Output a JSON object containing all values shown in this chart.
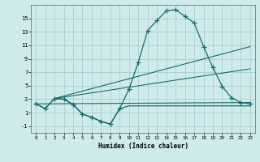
{
  "xlabel": "Humidex (Indice chaleur)",
  "background_color": "#ceeaea",
  "grid_color": "#aacfcf",
  "line_color": "#1a6b6b",
  "xlim": [
    -0.5,
    23.5
  ],
  "ylim": [
    -2,
    17
  ],
  "xticks": [
    0,
    1,
    2,
    3,
    4,
    5,
    6,
    7,
    8,
    9,
    10,
    11,
    12,
    13,
    14,
    15,
    16,
    17,
    18,
    19,
    20,
    21,
    22,
    23
  ],
  "yticks": [
    -1,
    1,
    3,
    5,
    7,
    9,
    11,
    13,
    15
  ],
  "curve_x": [
    0,
    1,
    2,
    3,
    4,
    5,
    6,
    7,
    8,
    9,
    10,
    11,
    12,
    13,
    14,
    15,
    16,
    17,
    18,
    19,
    20,
    21,
    22,
    23
  ],
  "curve_y": [
    2.3,
    1.6,
    3.1,
    3.0,
    2.2,
    0.8,
    0.3,
    -0.3,
    -0.7,
    1.6,
    4.5,
    8.5,
    13.2,
    14.7,
    16.1,
    16.3,
    15.3,
    14.3,
    10.8,
    7.7,
    4.9,
    3.2,
    2.5,
    2.3
  ],
  "min_x": [
    0,
    1,
    2,
    3,
    4,
    5,
    6,
    7,
    8,
    9,
    10,
    11,
    12,
    13,
    14,
    15,
    16,
    17,
    18,
    19,
    20,
    21,
    22,
    23
  ],
  "min_y": [
    2.3,
    1.6,
    3.1,
    3.0,
    2.2,
    0.8,
    0.3,
    -0.3,
    -0.7,
    1.6,
    2.0,
    2.0,
    2.0,
    2.0,
    2.0,
    2.0,
    2.0,
    2.0,
    2.0,
    2.0,
    2.0,
    2.0,
    2.0,
    2.0
  ],
  "upper_line": [
    [
      2,
      3.1
    ],
    [
      23,
      10.8
    ]
  ],
  "middle_line": [
    [
      2,
      3.1
    ],
    [
      23,
      7.5
    ]
  ],
  "lower_line": [
    [
      0,
      2.3
    ],
    [
      23,
      2.5
    ]
  ]
}
